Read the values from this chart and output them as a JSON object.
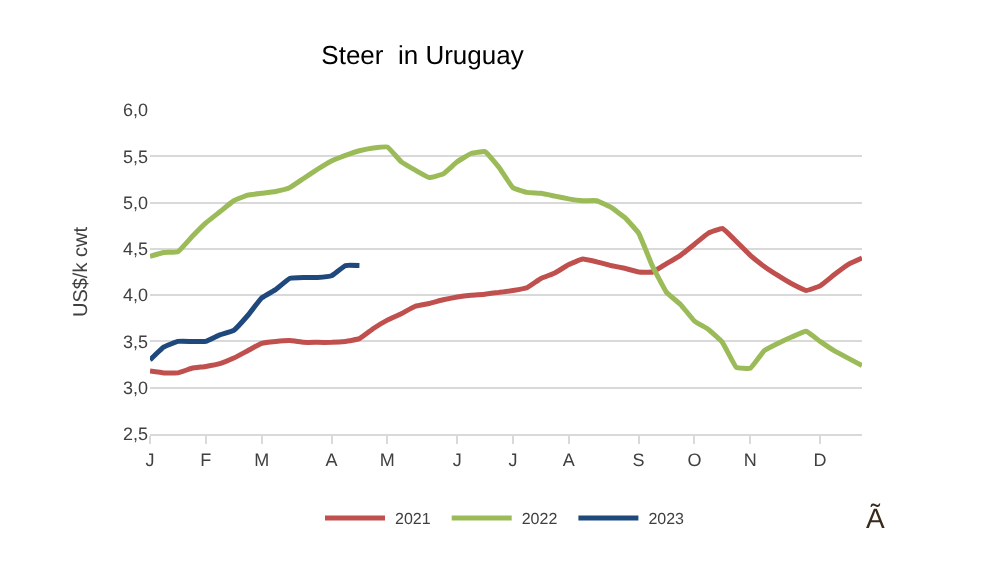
{
  "chart_data": {
    "type": "line",
    "title": "Steer  in Uruguay",
    "ylabel": "US$/k cwt",
    "categories": [
      "J",
      null,
      null,
      null,
      "F",
      null,
      null,
      null,
      "M",
      null,
      null,
      null,
      null,
      "A",
      null,
      null,
      null,
      "M",
      null,
      null,
      null,
      null,
      "J",
      null,
      null,
      null,
      "J",
      null,
      null,
      null,
      "A",
      null,
      null,
      null,
      null,
      "S",
      null,
      null,
      null,
      "O",
      null,
      null,
      null,
      "N",
      null,
      null,
      null,
      null,
      "D",
      null,
      null,
      null
    ],
    "ylim": [
      2.5,
      6.0
    ],
    "yticks": [
      {
        "value": 2.5,
        "label": "2,5"
      },
      {
        "value": 3.0,
        "label": "3,0"
      },
      {
        "value": 3.5,
        "label": "3,5"
      },
      {
        "value": 4.0,
        "label": "4,0"
      },
      {
        "value": 4.5,
        "label": "4,5"
      },
      {
        "value": 5.0,
        "label": "5,0"
      },
      {
        "value": 5.5,
        "label": "5,5"
      },
      {
        "value": 6.0,
        "label": "6,0"
      }
    ],
    "grid": "y",
    "legend": "bottom",
    "marker": "none",
    "line_style": "solid",
    "annotations": [
      "Ã"
    ],
    "series": [
      {
        "name": "2021",
        "color": "#c0504d",
        "values": [
          3.18,
          3.16,
          3.16,
          3.21,
          3.23,
          3.26,
          3.32,
          3.4,
          3.48,
          3.5,
          3.51,
          3.49,
          3.49,
          3.49,
          3.5,
          3.53,
          3.64,
          3.73,
          3.8,
          3.88,
          3.91,
          3.95,
          3.98,
          4.0,
          4.01,
          4.03,
          4.05,
          4.08,
          4.18,
          4.24,
          4.33,
          4.39,
          4.36,
          4.32,
          4.29,
          4.25,
          4.25,
          4.34,
          4.43,
          4.55,
          4.67,
          4.72,
          4.58,
          4.43,
          4.31,
          4.21,
          4.12,
          4.05,
          4.1,
          4.22,
          4.33,
          4.4
        ]
      },
      {
        "name": "2022",
        "color": "#9bbb59",
        "values": [
          4.42,
          4.46,
          4.47,
          4.63,
          4.78,
          4.9,
          5.02,
          5.08,
          5.1,
          5.12,
          5.16,
          5.26,
          5.36,
          5.45,
          5.51,
          5.56,
          5.59,
          5.6,
          5.44,
          5.35,
          5.27,
          5.31,
          5.44,
          5.53,
          5.55,
          5.38,
          5.16,
          5.11,
          5.1,
          5.07,
          5.04,
          5.02,
          5.02,
          4.95,
          4.84,
          4.67,
          4.31,
          4.03,
          3.9,
          3.72,
          3.63,
          3.49,
          3.22,
          3.21,
          3.4,
          3.48,
          3.55,
          3.61,
          3.5,
          3.4,
          3.32,
          3.24
        ]
      },
      {
        "name": "2023",
        "color": "#1f497d",
        "values": [
          3.3,
          3.44,
          3.5,
          3.5,
          3.5,
          3.57,
          3.62,
          3.78,
          3.97,
          4.06,
          4.18,
          4.19,
          4.19,
          4.21,
          4.32,
          4.32,
          null,
          null,
          null,
          null,
          null,
          null,
          null,
          null,
          null,
          null,
          null,
          null,
          null,
          null,
          null,
          null,
          null,
          null,
          null,
          null,
          null,
          null,
          null,
          null,
          null,
          null,
          null,
          null,
          null,
          null,
          null,
          null,
          null,
          null,
          null,
          null
        ]
      }
    ]
  }
}
